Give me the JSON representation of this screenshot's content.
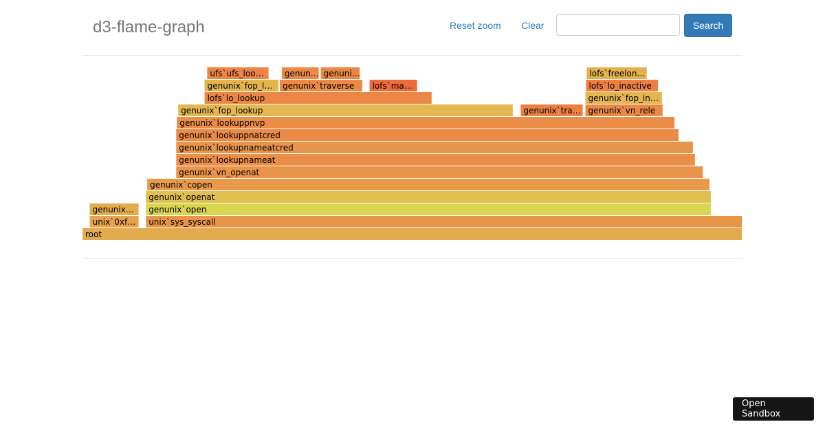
{
  "header": {
    "title": "d3-flame-graph",
    "reset_zoom_label": "Reset zoom",
    "clear_label": "Clear",
    "search_value": "",
    "search_button_label": "Search",
    "accent_color": "#337ab7"
  },
  "flame_graph": {
    "total": 1000,
    "frames": [
      {
        "label": "root",
        "depth": 0,
        "start": 0,
        "value": 1000,
        "color": "#e3ab50"
      },
      {
        "label": "unix`0xf…",
        "depth": 1,
        "start": 11,
        "value": 75,
        "color": "#e7a24b"
      },
      {
        "label": "unix`sys_syscall",
        "depth": 1,
        "start": 96,
        "value": 904,
        "color": "#e89548"
      },
      {
        "label": "genunix…",
        "depth": 2,
        "start": 11,
        "value": 75,
        "color": "#e3ad4d"
      },
      {
        "label": "genunix`open",
        "depth": 2,
        "start": 96,
        "value": 857,
        "color": "#d8d54f"
      },
      {
        "label": "genunix`openat",
        "depth": 3,
        "start": 96,
        "value": 857,
        "color": "#e0c050"
      },
      {
        "label": "genunix`copen",
        "depth": 4,
        "start": 98,
        "value": 853,
        "color": "#e89a4a"
      },
      {
        "label": "genunix`vn_openat",
        "depth": 5,
        "start": 142,
        "value": 799,
        "color": "#e8944a"
      },
      {
        "label": "genunix`lookupnameat",
        "depth": 6,
        "start": 142,
        "value": 787,
        "color": "#ea8e48"
      },
      {
        "label": "genunix`lookupnameatcred",
        "depth": 7,
        "start": 142,
        "value": 784,
        "color": "#e8944a"
      },
      {
        "label": "genunix`lookuppnatcred",
        "depth": 8,
        "start": 142,
        "value": 762,
        "color": "#e98a46"
      },
      {
        "label": "genunix`lookuppnvp",
        "depth": 9,
        "start": 143,
        "value": 755,
        "color": "#ea8d47"
      },
      {
        "label": "genunix`fop_lookup",
        "depth": 10,
        "start": 145,
        "value": 508,
        "color": "#e4b851"
      },
      {
        "label": "genunix`tra…",
        "depth": 10,
        "start": 664,
        "value": 95,
        "color": "#eb8143"
      },
      {
        "label": "genunix`vn_rele",
        "depth": 10,
        "start": 762,
        "value": 118,
        "color": "#eb8845"
      },
      {
        "label": "lofs`lo_lookup",
        "depth": 11,
        "start": 185,
        "value": 345,
        "color": "#eb8746"
      },
      {
        "label": "genunix`fop_in…",
        "depth": 11,
        "start": 762,
        "value": 117,
        "color": "#e4b651"
      },
      {
        "label": "genunix`fop_l…",
        "depth": 12,
        "start": 185,
        "value": 113,
        "color": "#e2b44d"
      },
      {
        "label": "genunix`traverse",
        "depth": 12,
        "start": 299,
        "value": 126,
        "color": "#ea8a46"
      },
      {
        "label": "lofs`ma…",
        "depth": 12,
        "start": 435,
        "value": 73,
        "color": "#ee6c3b"
      },
      {
        "label": "lofs`lo_inactive",
        "depth": 12,
        "start": 763,
        "value": 110,
        "color": "#ec7f42"
      },
      {
        "label": "ufs`ufs_loo…",
        "depth": 13,
        "start": 189,
        "value": 94,
        "color": "#eb8445"
      },
      {
        "label": "genun…",
        "depth": 13,
        "start": 302,
        "value": 57,
        "color": "#eb8a46"
      },
      {
        "label": "genuni…",
        "depth": 13,
        "start": 361,
        "value": 60,
        "color": "#ec8845"
      },
      {
        "label": "lofs`freelon…",
        "depth": 13,
        "start": 764,
        "value": 92,
        "color": "#e3b04e"
      }
    ]
  },
  "sandbox": {
    "label": "Open Sandbox"
  }
}
